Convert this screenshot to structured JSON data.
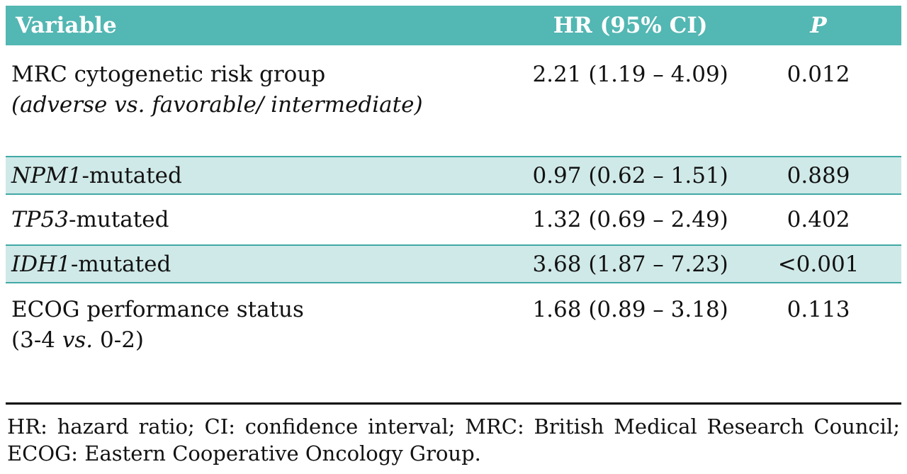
{
  "colors": {
    "header_bg": "#53b7b3",
    "shaded_row_bg": "#cfe9e8",
    "shaded_row_border": "#41a9a5",
    "header_text": "#ffffff",
    "body_text": "#121212",
    "bottom_rule": "#000000"
  },
  "table": {
    "headers": [
      "Variable",
      "HR (95% CI)",
      "P"
    ],
    "rows": [
      {
        "line1": "MRC cytogenetic risk group",
        "line2_italic": "(adverse vs. favorable/ intermediate)",
        "hr": "2.21 (1.19 – 4.09)",
        "p": "0.012"
      },
      {
        "gene": "NPM1",
        "suffix": "-mutated",
        "hr": "0.97 (0.62 – 1.51)",
        "p": "0.889"
      },
      {
        "gene": "TP53",
        "suffix": "-mutated",
        "hr": "1.32 (0.69 – 2.49)",
        "p": "0.402"
      },
      {
        "gene": "IDH1",
        "suffix": "-mutated",
        "hr": "3.68 (1.87 – 7.23)",
        "p": "<0.001"
      },
      {
        "line1": "ECOG performance status",
        "line2_pre": "(3-4 ",
        "line2_italic": "vs.",
        "line2_post": " 0-2)",
        "hr": "1.68 (0.89 – 3.18)",
        "p": "0.113"
      }
    ]
  },
  "footnote": {
    "line1": "HR: hazard ratio; CI: confidence interval; MRC: British Medical Research Council;",
    "line2": "ECOG: Eastern Cooperative Oncology Group."
  }
}
